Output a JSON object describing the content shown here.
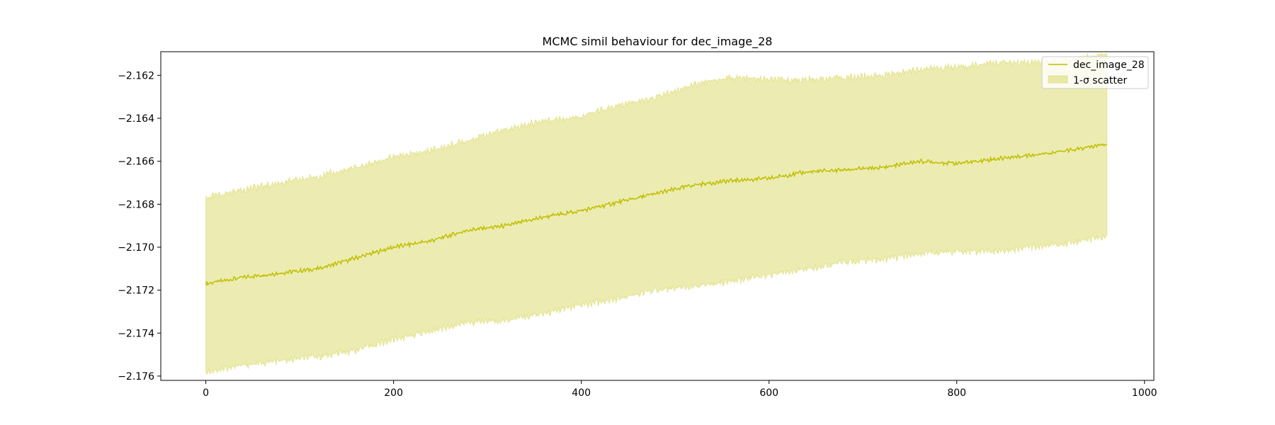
{
  "chart_data": {
    "type": "line",
    "title": "MCMC simil behaviour for dec_image_28",
    "xlabel": "",
    "ylabel": "",
    "xlim": [
      -48,
      1010
    ],
    "ylim": [
      -2.1762,
      -2.1609
    ],
    "x_ticks": [
      0,
      200,
      400,
      600,
      800,
      1000
    ],
    "x_tick_labels": [
      "0",
      "200",
      "400",
      "600",
      "800",
      "1000"
    ],
    "y_ticks": [
      -2.162,
      -2.164,
      -2.166,
      -2.168,
      -2.17,
      -2.172,
      -2.174,
      -2.176
    ],
    "y_tick_labels": [
      "−2.162",
      "−2.164",
      "−2.166",
      "−2.168",
      "−2.170",
      "−2.172",
      "−2.174",
      "−2.176"
    ],
    "grid": false,
    "legend_position": "top-right",
    "colors": {
      "line": "#bfbf00",
      "band": "#bfbf00",
      "band_opacity": 0.3
    },
    "x_range": [
      0,
      960
    ],
    "series": [
      {
        "name": "dec_image_28",
        "kind": "line",
        "x": [
          0,
          40,
          80,
          120,
          160,
          200,
          240,
          280,
          320,
          360,
          400,
          440,
          480,
          520,
          560,
          600,
          640,
          680,
          720,
          760,
          800,
          840,
          880,
          920,
          960
        ],
        "values": [
          -2.1717,
          -2.1714,
          -2.1712,
          -2.171,
          -2.1705,
          -2.17,
          -2.1697,
          -2.1692,
          -2.169,
          -2.1686,
          -2.1683,
          -2.1679,
          -2.1675,
          -2.1671,
          -2.1669,
          -2.1668,
          -2.1665,
          -2.1664,
          -2.1663,
          -2.166,
          -2.1661,
          -2.1659,
          -2.1657,
          -2.1655,
          -2.1652
        ]
      },
      {
        "name": "1-σ scatter",
        "kind": "band",
        "x": [
          0,
          40,
          80,
          120,
          160,
          200,
          240,
          280,
          320,
          360,
          400,
          440,
          480,
          520,
          560,
          600,
          640,
          680,
          720,
          760,
          800,
          840,
          880,
          920,
          960
        ],
        "upper": [
          -2.1677,
          -2.1673,
          -2.167,
          -2.1667,
          -2.1663,
          -2.1658,
          -2.1655,
          -2.165,
          -2.1645,
          -2.1641,
          -2.1639,
          -2.1634,
          -2.163,
          -2.1624,
          -2.1621,
          -2.1622,
          -2.1622,
          -2.1621,
          -2.162,
          -2.1617,
          -2.1616,
          -2.1614,
          -2.1614,
          -2.1613,
          -2.161
        ],
        "lower": [
          -2.1758,
          -2.1755,
          -2.1753,
          -2.1751,
          -2.1748,
          -2.1743,
          -2.1739,
          -2.1735,
          -2.1734,
          -2.1731,
          -2.1727,
          -2.1724,
          -2.172,
          -2.1718,
          -2.1716,
          -2.1713,
          -2.171,
          -2.1707,
          -2.1706,
          -2.1703,
          -2.1702,
          -2.1702,
          -2.17,
          -2.1698,
          -2.1695
        ]
      }
    ]
  }
}
